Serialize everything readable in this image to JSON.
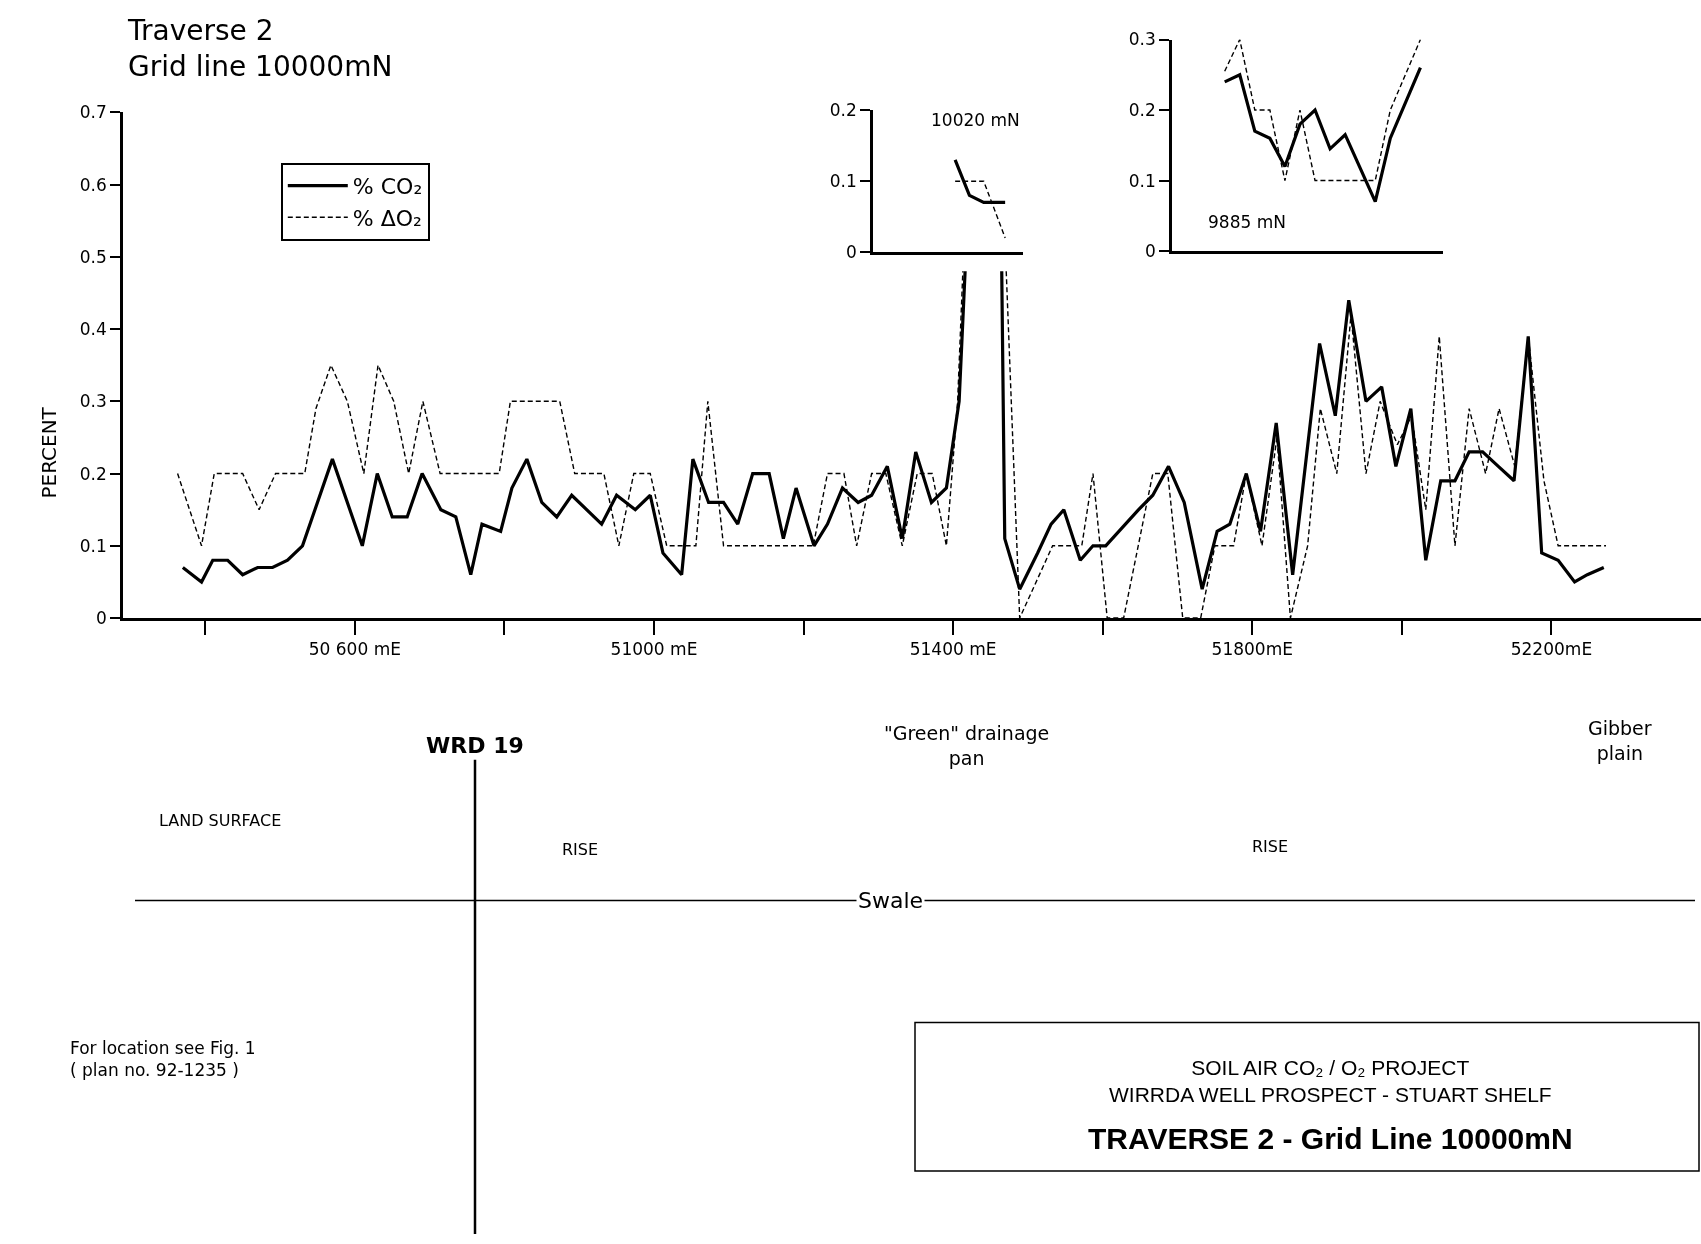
{
  "chart_data": [
    {
      "type": "line",
      "title": "Traverse 2\nGrid line 10000mN",
      "ylabel": "PERCENT",
      "xlim": [
        50290,
        52400
      ],
      "ylim": [
        0,
        0.7
      ],
      "xticks": [
        {
          "value": 50400,
          "label": null
        },
        {
          "value": 50600,
          "label": "50 600 mE"
        },
        {
          "value": 50800,
          "label": null
        },
        {
          "value": 51000,
          "label": "51000 mE"
        },
        {
          "value": 51200,
          "label": null
        },
        {
          "value": 51400,
          "label": "51400 mE"
        },
        {
          "value": 51600,
          "label": null
        },
        {
          "value": 51800,
          "label": "51800mE"
        },
        {
          "value": 52000,
          "label": null
        },
        {
          "value": 52200,
          "label": "52200mE"
        }
      ],
      "yticks": [
        0,
        0.1,
        0.2,
        0.3,
        0.4,
        0.5,
        0.6,
        0.7
      ],
      "legend": "top left",
      "marker": "none",
      "series": [
        {
          "name": "% CO₂",
          "color": "#000000",
          "line_style": "solid",
          "x": [
            50370,
            50395,
            50410,
            50430,
            50450,
            50470,
            50490,
            50510,
            50530,
            50570,
            50610,
            50630,
            50650,
            50670,
            50690,
            50715,
            50735,
            50755,
            50770,
            50795,
            50810,
            50830,
            50850,
            50870,
            50890,
            50930,
            50950,
            50975,
            50995,
            51012,
            51037,
            51052,
            51073,
            51093,
            51112,
            51132,
            51154,
            51173,
            51190,
            51214,
            51232,
            51252,
            51273,
            51291,
            51312,
            51332,
            51350,
            51371,
            51391,
            51408,
            51416,
            51440,
            51465,
            51469,
            51489,
            51513,
            51531,
            51548,
            51570,
            51587,
            51604,
            51648,
            51667,
            51688,
            51709,
            51733,
            51753,
            51770,
            51792,
            51811,
            51832,
            51854,
            51890,
            51911,
            51929,
            51952,
            51973,
            51992,
            52012,
            52032,
            52052,
            52071,
            52090,
            52108,
            52129,
            52150,
            52169,
            52187,
            52209,
            52231,
            52248,
            52270
          ],
          "values": [
            0.07,
            0.05,
            0.08,
            0.08,
            0.06,
            0.07,
            0.07,
            0.08,
            0.1,
            0.22,
            0.1,
            0.2,
            0.14,
            0.14,
            0.2,
            0.15,
            0.14,
            0.06,
            0.13,
            0.12,
            0.18,
            0.22,
            0.16,
            0.14,
            0.17,
            0.13,
            0.17,
            0.15,
            0.17,
            0.09,
            0.06,
            0.22,
            0.16,
            0.16,
            0.13,
            0.2,
            0.2,
            0.11,
            0.18,
            0.1,
            0.13,
            0.18,
            0.16,
            0.17,
            0.21,
            0.11,
            0.23,
            0.16,
            0.18,
            0.3,
            0.48,
            null,
            0.48,
            0.11,
            0.04,
            0.09,
            0.13,
            0.15,
            0.08,
            0.1,
            0.1,
            0.15,
            0.17,
            0.21,
            0.16,
            0.04,
            0.12,
            0.13,
            0.2,
            0.12,
            0.27,
            0.06,
            0.38,
            0.28,
            0.44,
            0.3,
            0.32,
            0.21,
            0.29,
            0.08,
            0.19,
            0.19,
            0.23,
            0.23,
            0.21,
            0.19,
            0.39,
            0.09,
            0.08,
            0.05,
            0.06,
            0.07
          ]
        },
        {
          "name": "% ΔO₂",
          "color": "#000000",
          "line_style": "dashed",
          "x": [
            50363,
            50395,
            50412,
            50450,
            50472,
            50494,
            50533,
            50548,
            50568,
            50590,
            50612,
            50631,
            50652,
            50672,
            50691,
            50714,
            50793,
            50808,
            50874,
            50894,
            50933,
            50953,
            50973,
            50995,
            51017,
            51056,
            51072,
            51093,
            51213,
            51232,
            51254,
            51271,
            51291,
            51310,
            51332,
            51352,
            51372,
            51391,
            51406,
            51413,
            51440,
            51471,
            51489,
            51533,
            51572,
            51587,
            51606,
            51628,
            51667,
            51687,
            51707,
            51731,
            51750,
            51775,
            51792,
            51813,
            51833,
            51851,
            51874,
            51891,
            51913,
            51932,
            51952,
            51971,
            51994,
            52013,
            52032,
            52050,
            52071,
            52090,
            52112,
            52130,
            52151,
            52169,
            52190,
            52209,
            52273
          ],
          "values": [
            0.2,
            0.1,
            0.2,
            0.2,
            0.15,
            0.2,
            0.2,
            0.29,
            0.35,
            0.3,
            0.2,
            0.35,
            0.3,
            0.2,
            0.3,
            0.2,
            0.2,
            0.3,
            0.3,
            0.2,
            0.2,
            0.1,
            0.2,
            0.2,
            0.1,
            0.1,
            0.3,
            0.1,
            0.1,
            0.2,
            0.2,
            0.1,
            0.2,
            0.2,
            0.1,
            0.2,
            0.2,
            0.1,
            0.3,
            0.48,
            null,
            0.48,
            0,
            0.1,
            0.1,
            0.2,
            0,
            0,
            0.2,
            0.2,
            0,
            0,
            0.1,
            0.1,
            0.2,
            0.1,
            0.25,
            0,
            0.1,
            0.29,
            0.2,
            0.42,
            0.2,
            0.3,
            0.24,
            0.28,
            0.15,
            0.39,
            0.1,
            0.29,
            0.2,
            0.29,
            0.21,
            0.39,
            0.19,
            0.1,
            0.1
          ]
        }
      ],
      "annotations": [
        "WRD 19",
        "\"Green\" drainage\npan",
        "Gibber\nplain",
        "LAND SURFACE",
        "RISE",
        "RISE",
        "Swale",
        "For location see Fig. 1\n( plan no. 92-1235 )",
        "SOIL AIR CO₂ / O₂ PROJECT\nWIRRDA WELL PROSPECT - STUART SHELF",
        "TRAVERSE 2 - Grid Line 10000mN"
      ]
    },
    {
      "type": "line",
      "title": "10020 mN",
      "categories": [
        null,
        null,
        null,
        null,
        null,
        null,
        null,
        null,
        null,
        null,
        null,
        null,
        null,
        null,
        null,
        null,
        null,
        null,
        null,
        null,
        null
      ],
      "ylim": [
        0,
        0.2
      ],
      "yticks": [
        0,
        0.1,
        0.2
      ],
      "marker": "none",
      "series": [
        {
          "color": "#000000",
          "line_style": "solid",
          "values": [
            null,
            null,
            null,
            null,
            null,
            null,
            null,
            null,
            null,
            null,
            null,
            0.13,
            null,
            0.08,
            null,
            0.07,
            null,
            null,
            0.07,
            null,
            null
          ]
        },
        {
          "color": "#000000",
          "line_style": "dashed",
          "values": [
            null,
            null,
            null,
            null,
            null,
            null,
            null,
            null,
            null,
            null,
            null,
            0.1,
            null,
            null,
            null,
            0.1,
            null,
            null,
            0.02,
            null,
            null
          ]
        }
      ]
    },
    {
      "type": "line",
      "title": "9885 mN",
      "categories": [
        null,
        null,
        null,
        null,
        null,
        null,
        null,
        null,
        null,
        null,
        null,
        null,
        null,
        null,
        null,
        null,
        null,
        null
      ],
      "ylim": [
        0,
        0.3
      ],
      "yticks": [
        0,
        0.1,
        0.2,
        0.3
      ],
      "marker": "none",
      "series": [
        {
          "color": "#000000",
          "line_style": "solid",
          "values": [
            null,
            null,
            null,
            0.24,
            0.25,
            0.17,
            0.16,
            0.12,
            0.18,
            0.2,
            0.145,
            0.165,
            null,
            0.07,
            0.16,
            null,
            0.26,
            null
          ]
        },
        {
          "color": "#000000",
          "line_style": "dashed",
          "values": [
            null,
            null,
            null,
            0.255,
            0.3,
            0.2,
            0.2,
            0.1,
            0.2,
            0.1,
            null,
            null,
            null,
            0.1,
            0.2,
            null,
            0.3,
            null
          ]
        }
      ]
    }
  ]
}
